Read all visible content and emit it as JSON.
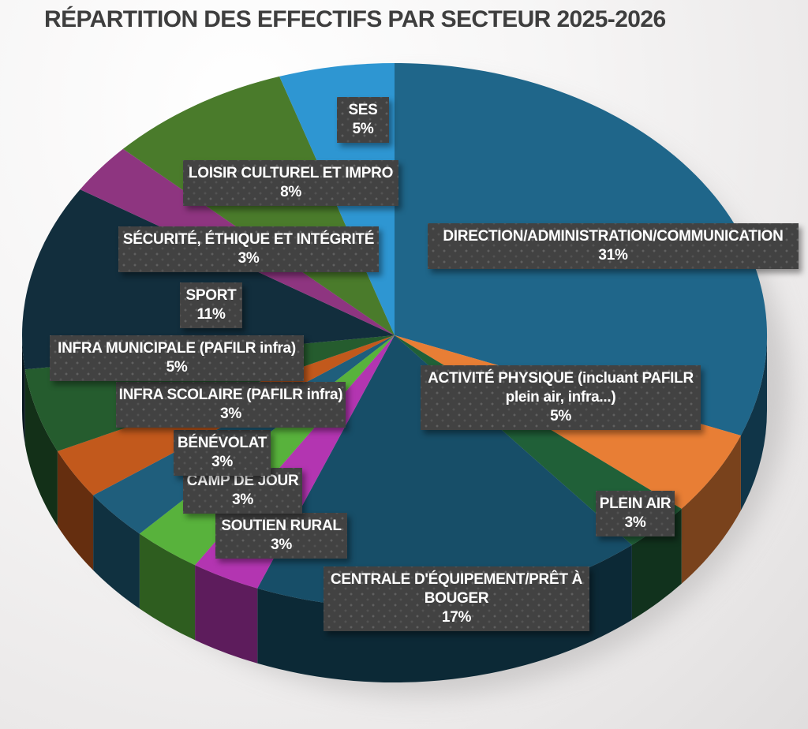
{
  "chart_data": {
    "type": "pie",
    "projection": "3d",
    "title": "RÉPARTITION DES EFFECTIFS PAR SECTEUR 2025-2026",
    "start_angle_deg": 0,
    "direction": "clockwise",
    "legend": "none",
    "label_style": "dark-callout-boxes",
    "background_color": "#f2f1f1",
    "title_color": "#3e3e3e",
    "callout_box_color": "#424242",
    "callout_text_color": "#ffffff",
    "slices": [
      {
        "id": "direction-administration-communication",
        "name": "DIRECTION/ADMINISTRATION/COMMUNICATION",
        "value": 31,
        "pct_label": "31%",
        "color": "#1F668A"
      },
      {
        "id": "activite-physique",
        "name": "ACTIVITÉ PHYSIQUE (incluant PAFILR\nplein air, infra...)",
        "value": 5,
        "pct_label": "5%",
        "color": "#E87E35"
      },
      {
        "id": "plein-air",
        "name": "PLEIN AIR",
        "value": 3,
        "pct_label": "3%",
        "color": "#206038"
      },
      {
        "id": "centrale-equipement-pret-a-bouger",
        "name": "CENTRALE D'ÉQUIPEMENT/PRÊT À\nBOUGER",
        "value": 17,
        "pct_label": "17%",
        "color": "#174E68"
      },
      {
        "id": "soutien-rural",
        "name": "SOUTIEN RURAL",
        "value": 3,
        "pct_label": "3%",
        "color": "#B335B1"
      },
      {
        "id": "camp-de-jour",
        "name": "CAMP DE JOUR",
        "value": 3,
        "pct_label": "3%",
        "color": "#58B23C"
      },
      {
        "id": "benevolat",
        "name": "BÉNÉVOLAT",
        "value": 3,
        "pct_label": "3%",
        "color": "#1F5E7C"
      },
      {
        "id": "infra-scolaire",
        "name": "INFRA SCOLAIRE (PAFILR infra)",
        "value": 3,
        "pct_label": "3%",
        "color": "#C2591C"
      },
      {
        "id": "infra-municipale",
        "name": "INFRA MUNICIPALE (PAFILR infra)",
        "value": 5,
        "pct_label": "5%",
        "color": "#255C2E"
      },
      {
        "id": "sport",
        "name": "SPORT",
        "value": 11,
        "pct_label": "11%",
        "color": "#122E3D"
      },
      {
        "id": "securite-ethique-integrite",
        "name": "SÉCURITÉ, ÉTHIQUE ET INTÉGRITÉ",
        "value": 3,
        "pct_label": "3%",
        "color": "#8E3580"
      },
      {
        "id": "loisir-culturel-impro",
        "name": "LOISIR CULTUREL ET IMPRO",
        "value": 8,
        "pct_label": "8%",
        "color": "#4A7B2B"
      },
      {
        "id": "ses",
        "name": "SES",
        "value": 5,
        "pct_label": "5%",
        "color": "#2E96D2"
      }
    ]
  }
}
